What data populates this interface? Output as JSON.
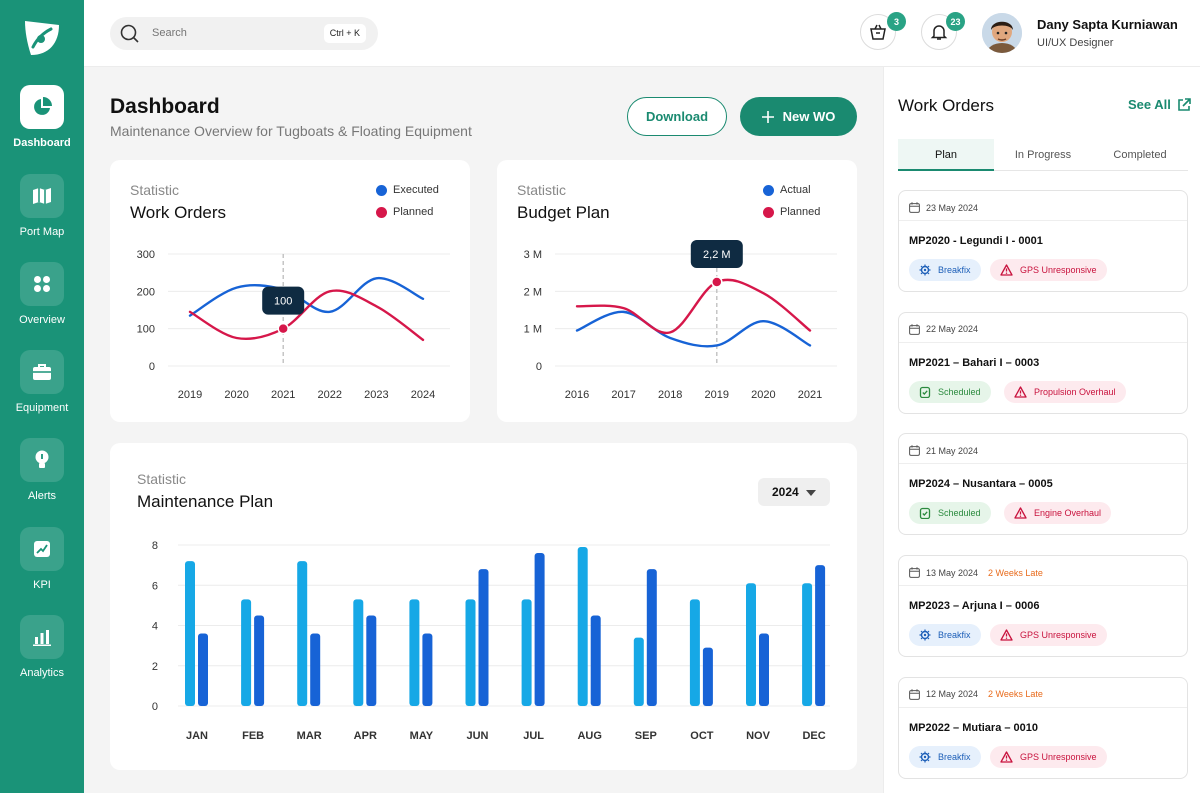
{
  "app": {
    "logo": "leaf-logo"
  },
  "sidebar": {
    "items": [
      {
        "label": "Dashboard",
        "icon": "pie-chart-icon",
        "active": true
      },
      {
        "label": "Port Map",
        "icon": "map-icon"
      },
      {
        "label": "Overview",
        "icon": "grid-icon"
      },
      {
        "label": "Equipment",
        "icon": "briefcase-icon"
      },
      {
        "label": "Alerts",
        "icon": "bulb-icon"
      },
      {
        "label": "KPI",
        "icon": "kpi-chart-icon"
      },
      {
        "label": "Analytics",
        "icon": "bar-chart-icon"
      }
    ]
  },
  "topbar": {
    "search_placeholder": "Search",
    "search_shortcut": "Ctrl + K",
    "cart_count": "3",
    "notification_count": "23",
    "user_name": "Dany Sapta Kurniawan",
    "user_role": "UI/UX Designer"
  },
  "header": {
    "title": "Dashboard",
    "subtitle": "Maintenance Overview for Tugboats & Floating Equipment",
    "download_label": "Download",
    "new_wo_label": "New WO"
  },
  "colors": {
    "primary": "#1a8a70",
    "sidebar": "#1a9378",
    "blue": "#1763d6",
    "red": "#d6174a",
    "light_blue": "#16a8e6"
  },
  "chart_data": [
    {
      "type": "line",
      "kicker": "Statistic",
      "title": "Work Orders",
      "x": [
        "2019",
        "2020",
        "2021",
        "2022",
        "2023",
        "2024"
      ],
      "ylim": [
        0,
        300
      ],
      "yticks": [
        "0",
        "100",
        "200",
        "300"
      ],
      "series": [
        {
          "name": "Executed",
          "color": "#1763d6",
          "values": [
            135,
            210,
            205,
            145,
            235,
            180
          ]
        },
        {
          "name": "Planned",
          "color": "#d6174a",
          "values": [
            145,
            75,
            100,
            200,
            160,
            70
          ]
        }
      ],
      "highlight": {
        "series": "Planned",
        "x": "2021",
        "label": "100"
      }
    },
    {
      "type": "line",
      "kicker": "Statistic",
      "title": "Budget Plan",
      "x": [
        "2016",
        "2017",
        "2018",
        "2019",
        "2020",
        "2021"
      ],
      "ylim": [
        0,
        3
      ],
      "yticks": [
        "0",
        "1 M",
        "2 M",
        "3 M"
      ],
      "series": [
        {
          "name": "Actual",
          "color": "#1763d6",
          "values": [
            0.95,
            1.45,
            0.75,
            0.55,
            1.2,
            0.55
          ]
        },
        {
          "name": "Planned",
          "color": "#d6174a",
          "values": [
            1.6,
            1.55,
            0.9,
            2.25,
            1.95,
            0.95
          ]
        }
      ],
      "highlight": {
        "series": "Planned",
        "x": "2019",
        "label": "2,2 M"
      }
    },
    {
      "type": "bar",
      "kicker": "Statistic",
      "title": "Maintenance Plan",
      "selected_year": "2024",
      "categories": [
        "JAN",
        "FEB",
        "MAR",
        "APR",
        "MAY",
        "JUN",
        "JUL",
        "AUG",
        "SEP",
        "OCT",
        "NOV",
        "DEC"
      ],
      "ylim": [
        0,
        8
      ],
      "yticks": [
        "0",
        "2",
        "4",
        "6",
        "8"
      ],
      "series": [
        {
          "color": "#16a8e6",
          "values": [
            7.2,
            5.3,
            7.2,
            5.3,
            5.3,
            5.3,
            5.3,
            7.9,
            3.4,
            5.3,
            6.1,
            6.1
          ]
        },
        {
          "color": "#1763d6",
          "values": [
            3.6,
            4.5,
            3.6,
            4.5,
            3.6,
            6.8,
            7.6,
            4.5,
            6.8,
            2.9,
            3.6,
            7.0
          ]
        }
      ]
    }
  ],
  "work_orders": {
    "title": "Work Orders",
    "see_all": "See All",
    "tabs": [
      "Plan",
      "In Progress",
      "Completed"
    ],
    "items": [
      {
        "date": "23 May 2024",
        "late": "",
        "id": "MP2020 - Legundi I - 0001",
        "status": "Breakfix",
        "status_type": "blue",
        "issue": "GPS Unresponsive"
      },
      {
        "date": "22 May 2024",
        "late": "",
        "id": "MP2021 – Bahari I – 0003",
        "status": "Scheduled",
        "status_type": "green",
        "issue": "Propulsion Overhaul"
      },
      {
        "date": "21 May 2024",
        "late": "",
        "id": "MP2024 – Nusantara – 0005",
        "status": "Scheduled",
        "status_type": "green",
        "issue": "Engine Overhaul"
      },
      {
        "date": "13 May 2024",
        "late": "2 Weeks Late",
        "id": "MP2023 – Arjuna I – 0006",
        "status": "Breakfix",
        "status_type": "blue",
        "issue": "GPS Unresponsive"
      },
      {
        "date": "12 May 2024",
        "late": "2 Weeks Late",
        "id": "MP2022 – Mutiara – 0010",
        "status": "Breakfix",
        "status_type": "blue",
        "issue": "GPS Unresponsive"
      }
    ]
  }
}
